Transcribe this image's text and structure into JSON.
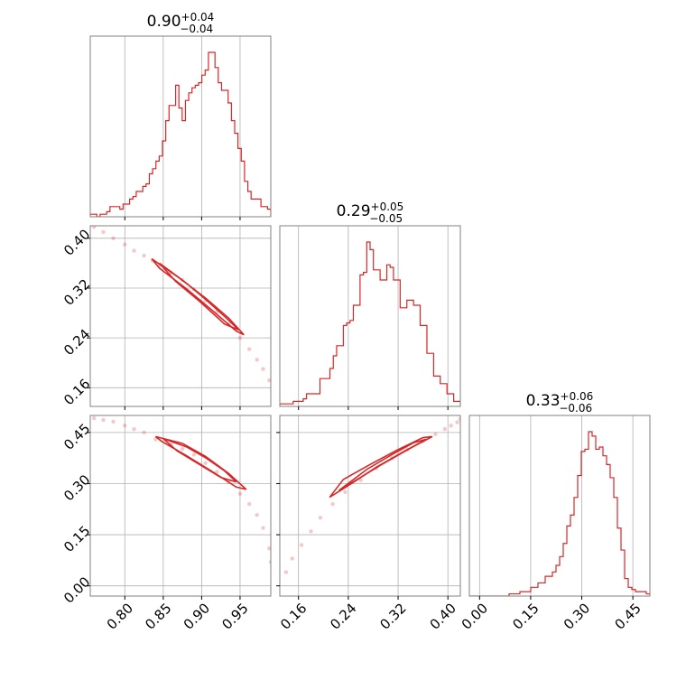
{
  "chart_data": {
    "type": "corner",
    "color": "#d62728",
    "panels": [
      {
        "kind": "hist",
        "param_index": 0,
        "title": {
          "value": "0.90",
          "upper": "+0.04",
          "lower": "−0.04"
        },
        "xlim": [
          0.755,
          0.99
        ],
        "xticks": [
          0.8,
          0.85,
          0.9,
          0.95
        ],
        "x_ticklabels": [],
        "edges": [
          0.755,
          0.99
        ],
        "counts": [
          1,
          1,
          0,
          1,
          1,
          2,
          4,
          4,
          4,
          3,
          5,
          5,
          7,
          8,
          10,
          10,
          12,
          13,
          17,
          19,
          22,
          24,
          30,
          38,
          44,
          44,
          52,
          43,
          38,
          46,
          49,
          51,
          52,
          53,
          56,
          58,
          65,
          65,
          59,
          53,
          50,
          50,
          45,
          38,
          33,
          27,
          22,
          14,
          10,
          7,
          7,
          7,
          4,
          4,
          3
        ]
      },
      {
        "kind": "hist",
        "param_index": 1,
        "title": {
          "value": "0.29",
          "upper": "+0.05",
          "lower": "−0.05"
        },
        "xlim": [
          0.13,
          0.42
        ],
        "xticks": [
          0.16,
          0.24,
          0.32,
          0.4
        ],
        "x_ticklabels": [],
        "edges": [
          0.13,
          0.42
        ],
        "counts": [
          1,
          1,
          1,
          1,
          2,
          2,
          2,
          3,
          5,
          5,
          5,
          5,
          11,
          11,
          11,
          15,
          20,
          24,
          24,
          32,
          33,
          34,
          40,
          40,
          52,
          53,
          65,
          62,
          54,
          54,
          50,
          50,
          56,
          55,
          50,
          50,
          39,
          39,
          42,
          42,
          40,
          40,
          32,
          32,
          21,
          21,
          12,
          12,
          9,
          9,
          5,
          5,
          2,
          2
        ]
      },
      {
        "kind": "hist",
        "param_index": 2,
        "title": {
          "value": "0.33",
          "upper": "+0.06",
          "lower": "−0.06"
        },
        "xlim": [
          -0.03,
          0.5
        ],
        "xticks": [
          0.0,
          0.15,
          0.3,
          0.45
        ],
        "x_ticklabels": [
          "0.00",
          "0.15",
          "0.30",
          "0.45"
        ],
        "edges": [
          -0.03,
          0.5
        ],
        "counts": [
          0,
          0,
          0,
          0,
          0,
          0,
          0,
          0,
          0,
          0,
          0,
          1,
          1,
          1,
          2,
          2,
          2,
          4,
          4,
          6,
          6,
          9,
          9,
          11,
          14,
          18,
          24,
          32,
          37,
          45,
          55,
          66,
          67,
          75,
          73,
          67,
          68,
          64,
          60,
          54,
          45,
          31,
          21,
          8,
          4,
          3,
          2,
          2,
          2,
          1
        ]
      },
      {
        "kind": "scatter",
        "x_index": 0,
        "y_index": 1,
        "xlim": [
          0.755,
          0.99
        ],
        "ylim": [
          0.13,
          0.42
        ],
        "xticks": [
          0.8,
          0.85,
          0.9,
          0.95
        ],
        "yticks": [
          0.16,
          0.24,
          0.32,
          0.4
        ],
        "y_ticklabels": [
          "0.16",
          "0.24",
          "0.32",
          "0.40"
        ],
        "x_ticklabels": [],
        "points": [
          [
            0.76,
            0.418
          ],
          [
            0.772,
            0.41
          ],
          [
            0.785,
            0.4
          ],
          [
            0.8,
            0.39
          ],
          [
            0.812,
            0.38
          ],
          [
            0.825,
            0.372
          ],
          [
            0.836,
            0.364
          ],
          [
            0.845,
            0.356
          ],
          [
            0.86,
            0.345
          ],
          [
            0.875,
            0.333
          ],
          [
            0.89,
            0.318
          ],
          [
            0.905,
            0.3
          ],
          [
            0.92,
            0.282
          ],
          [
            0.935,
            0.262
          ],
          [
            0.95,
            0.24
          ],
          [
            0.962,
            0.222
          ],
          [
            0.972,
            0.205
          ],
          [
            0.98,
            0.19
          ],
          [
            0.988,
            0.172
          ]
        ],
        "contours": [
          [
            [
              0.835,
              0.367
            ],
            [
              0.87,
              0.337
            ],
            [
              0.905,
              0.304
            ],
            [
              0.935,
              0.272
            ],
            [
              0.955,
              0.245
            ],
            [
              0.945,
              0.251
            ],
            [
              0.912,
              0.286
            ],
            [
              0.88,
              0.319
            ],
            [
              0.845,
              0.352
            ]
          ],
          [
            [
              0.845,
              0.36
            ],
            [
              0.878,
              0.33
            ],
            [
              0.905,
              0.302
            ],
            [
              0.932,
              0.272
            ],
            [
              0.948,
              0.253
            ],
            [
              0.93,
              0.262
            ],
            [
              0.898,
              0.298
            ],
            [
              0.866,
              0.331
            ]
          ]
        ]
      },
      {
        "kind": "scatter",
        "x_index": 0,
        "y_index": 2,
        "xlim": [
          0.755,
          0.99
        ],
        "ylim": [
          -0.03,
          0.5
        ],
        "xticks": [
          0.8,
          0.85,
          0.9,
          0.95
        ],
        "yticks": [
          0.0,
          0.15,
          0.3,
          0.45
        ],
        "y_ticklabels": [
          "0.00",
          "0.15",
          "0.30",
          "0.45"
        ],
        "x_ticklabels": [
          "0.80",
          "0.85",
          "0.90",
          "0.95"
        ],
        "points": [
          [
            0.76,
            0.492
          ],
          [
            0.772,
            0.487
          ],
          [
            0.785,
            0.482
          ],
          [
            0.8,
            0.47
          ],
          [
            0.812,
            0.46
          ],
          [
            0.825,
            0.45
          ],
          [
            0.84,
            0.43
          ],
          [
            0.86,
            0.415
          ],
          [
            0.875,
            0.402
          ],
          [
            0.89,
            0.385
          ],
          [
            0.905,
            0.36
          ],
          [
            0.92,
            0.335
          ],
          [
            0.935,
            0.305
          ],
          [
            0.95,
            0.27
          ],
          [
            0.962,
            0.24
          ],
          [
            0.972,
            0.208
          ],
          [
            0.98,
            0.17
          ],
          [
            0.988,
            0.11
          ],
          [
            0.99,
            0.07
          ]
        ],
        "contours": [
          [
            [
              0.84,
              0.438
            ],
            [
              0.875,
              0.418
            ],
            [
              0.905,
              0.38
            ],
            [
              0.935,
              0.33
            ],
            [
              0.958,
              0.283
            ],
            [
              0.945,
              0.29
            ],
            [
              0.912,
              0.338
            ],
            [
              0.878,
              0.385
            ],
            [
              0.848,
              0.424
            ]
          ],
          [
            [
              0.85,
              0.432
            ],
            [
              0.88,
              0.408
            ],
            [
              0.905,
              0.376
            ],
            [
              0.93,
              0.337
            ],
            [
              0.945,
              0.305
            ],
            [
              0.925,
              0.318
            ],
            [
              0.898,
              0.355
            ],
            [
              0.868,
              0.396
            ]
          ]
        ]
      },
      {
        "kind": "scatter",
        "x_index": 1,
        "y_index": 2,
        "xlim": [
          0.13,
          0.42
        ],
        "ylim": [
          -0.03,
          0.5
        ],
        "xticks": [
          0.16,
          0.24,
          0.32,
          0.4
        ],
        "yticks": [
          0.0,
          0.15,
          0.3,
          0.45
        ],
        "y_ticklabels": [],
        "x_ticklabels": [
          "0.16",
          "0.24",
          "0.32",
          "0.40"
        ],
        "points": [
          [
            0.14,
            0.04
          ],
          [
            0.15,
            0.08
          ],
          [
            0.165,
            0.12
          ],
          [
            0.18,
            0.16
          ],
          [
            0.195,
            0.2
          ],
          [
            0.215,
            0.24
          ],
          [
            0.235,
            0.275
          ],
          [
            0.26,
            0.31
          ],
          [
            0.285,
            0.345
          ],
          [
            0.31,
            0.375
          ],
          [
            0.335,
            0.4
          ],
          [
            0.36,
            0.425
          ],
          [
            0.38,
            0.445
          ],
          [
            0.395,
            0.46
          ],
          [
            0.405,
            0.47
          ],
          [
            0.415,
            0.48
          ],
          [
            0.42,
            0.49
          ]
        ],
        "contours": [
          [
            [
              0.21,
              0.26
            ],
            [
              0.245,
              0.3
            ],
            [
              0.285,
              0.348
            ],
            [
              0.33,
              0.395
            ],
            [
              0.375,
              0.438
            ],
            [
              0.36,
              0.435
            ],
            [
              0.318,
              0.398
            ],
            [
              0.275,
              0.356
            ],
            [
              0.232,
              0.312
            ]
          ],
          [
            [
              0.225,
              0.28
            ],
            [
              0.255,
              0.313
            ],
            [
              0.29,
              0.352
            ],
            [
              0.33,
              0.394
            ],
            [
              0.365,
              0.43
            ],
            [
              0.345,
              0.42
            ],
            [
              0.308,
              0.383
            ],
            [
              0.27,
              0.342
            ]
          ]
        ]
      }
    ]
  }
}
